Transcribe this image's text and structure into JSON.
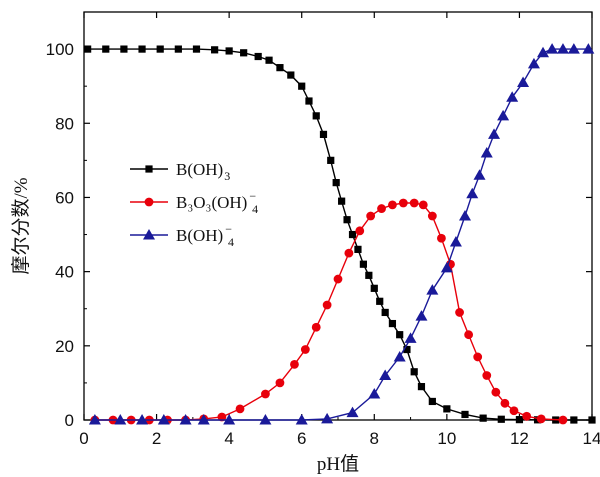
{
  "chart_data": {
    "type": "line",
    "xlabel": "pH值",
    "ylabel": "摩尔分数/%",
    "xlim": [
      0,
      14
    ],
    "ylim": [
      0,
      110
    ],
    "xticks": [
      "0",
      "2",
      "4",
      "6",
      "8",
      "10",
      "12",
      "14"
    ],
    "yticks": [
      "0",
      "20",
      "40",
      "60",
      "80",
      "100"
    ],
    "grid": false,
    "legend_position": "middle-left",
    "series": [
      {
        "name": "B(OH)3",
        "legend": {
          "base": "B(OH)",
          "sub": "3",
          "sup": ""
        },
        "color": "#000000",
        "marker": "square",
        "x": [
          0.1,
          0.6,
          1.1,
          1.6,
          2.1,
          2.6,
          3.1,
          3.6,
          4.0,
          4.4,
          4.8,
          5.1,
          5.4,
          5.7,
          6.0,
          6.2,
          6.4,
          6.6,
          6.8,
          6.95,
          7.1,
          7.25,
          7.4,
          7.55,
          7.7,
          7.85,
          8.0,
          8.15,
          8.3,
          8.5,
          8.7,
          8.9,
          9.1,
          9.3,
          9.6,
          10.0,
          10.5,
          11.0,
          11.5,
          12.0,
          12.5,
          13.0,
          13.5,
          14.0
        ],
        "y": [
          100,
          100,
          100,
          100,
          100,
          100,
          100,
          99.8,
          99.5,
          99,
          98,
          97,
          95,
          93,
          90,
          86,
          82,
          77,
          70,
          64,
          59,
          54,
          50,
          46,
          42,
          39,
          35.5,
          32,
          29,
          26,
          23,
          19,
          13,
          9,
          5,
          3,
          1.5,
          0.5,
          0.2,
          0.1,
          0.05,
          0,
          0,
          0
        ]
      },
      {
        "name": "B3O3(OH)4-",
        "legend": {
          "base": "B₃O₃(OH)",
          "sub": "4",
          "sup": "−"
        },
        "color": "#e8000b",
        "marker": "circle",
        "x": [
          0.3,
          0.8,
          1.3,
          1.8,
          2.3,
          2.8,
          3.3,
          3.8,
          4.3,
          5.0,
          5.4,
          5.8,
          6.1,
          6.4,
          6.7,
          7.0,
          7.3,
          7.6,
          7.9,
          8.2,
          8.5,
          8.8,
          9.1,
          9.35,
          9.6,
          9.85,
          10.1,
          10.35,
          10.6,
          10.85,
          11.1,
          11.35,
          11.6,
          11.85,
          12.2,
          12.6,
          13.2
        ],
        "y": [
          0,
          0,
          0,
          0,
          0,
          0,
          0.3,
          0.8,
          3,
          7,
          10,
          15,
          19,
          25,
          31,
          38,
          45,
          51,
          55,
          57,
          58,
          58.5,
          58.5,
          58,
          55,
          49,
          42,
          29,
          23,
          17,
          12,
          7.5,
          4.5,
          2.5,
          1,
          0.3,
          0
        ]
      },
      {
        "name": "B(OH)4-",
        "legend": {
          "base": "B(OH)",
          "sub": "4",
          "sup": "−"
        },
        "color": "#1a1a99",
        "marker": "triangle",
        "x": [
          0.3,
          1.0,
          1.6,
          2.2,
          2.8,
          3.3,
          4.0,
          5.0,
          6.0,
          6.7,
          7.4,
          8.0,
          8.3,
          8.7,
          9.0,
          9.3,
          9.6,
          10.0,
          10.25,
          10.5,
          10.7,
          10.9,
          11.1,
          11.3,
          11.55,
          11.8,
          12.1,
          12.4,
          12.65,
          12.9,
          13.2,
          13.5,
          13.9
        ],
        "y": [
          0,
          0,
          0,
          0,
          0,
          0,
          0,
          0,
          0,
          0.3,
          2,
          7,
          12,
          17,
          22,
          28,
          35,
          41,
          48,
          55,
          61,
          66,
          72,
          77,
          82,
          87,
          91,
          96,
          99,
          100,
          100,
          100,
          100
        ]
      }
    ]
  }
}
